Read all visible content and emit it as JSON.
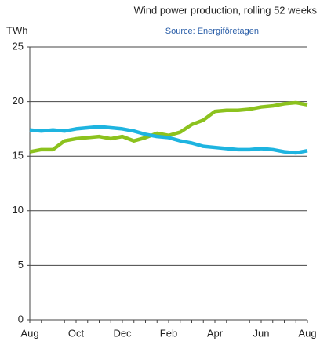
{
  "chart_data": {
    "type": "line",
    "title": "Wind power production, rolling 52 weeks",
    "subtitle": "Source: Energiföretagen",
    "y_label": "TWh",
    "categories": [
      "Aug",
      null,
      null,
      null,
      "Oct",
      null,
      null,
      null,
      "Dec",
      null,
      null,
      null,
      "Feb",
      null,
      null,
      null,
      "Apr",
      null,
      null,
      null,
      "Jun",
      null,
      null,
      null,
      "Aug"
    ],
    "series": [
      {
        "color": "#8cc21e",
        "values": [
          15.4,
          15.6,
          15.6,
          16.4,
          16.6,
          16.7,
          16.8,
          16.6,
          16.8,
          16.4,
          16.7,
          17.1,
          16.9,
          17.2,
          17.9,
          18.3,
          19.1,
          19.2,
          19.2,
          19.3,
          19.5,
          19.6,
          19.8,
          19.9,
          19.7
        ]
      },
      {
        "color": "#1eb4e0",
        "values": [
          17.4,
          17.3,
          17.4,
          17.3,
          17.5,
          17.6,
          17.7,
          17.6,
          17.5,
          17.3,
          17.0,
          16.8,
          16.7,
          16.4,
          16.2,
          15.9,
          15.8,
          15.7,
          15.6,
          15.6,
          15.7,
          15.6,
          15.4,
          15.3,
          15.5
        ]
      }
    ],
    "ylim": [
      0,
      25
    ],
    "yticks": [
      0,
      5,
      10,
      15,
      20,
      25
    ],
    "grid": true
  }
}
